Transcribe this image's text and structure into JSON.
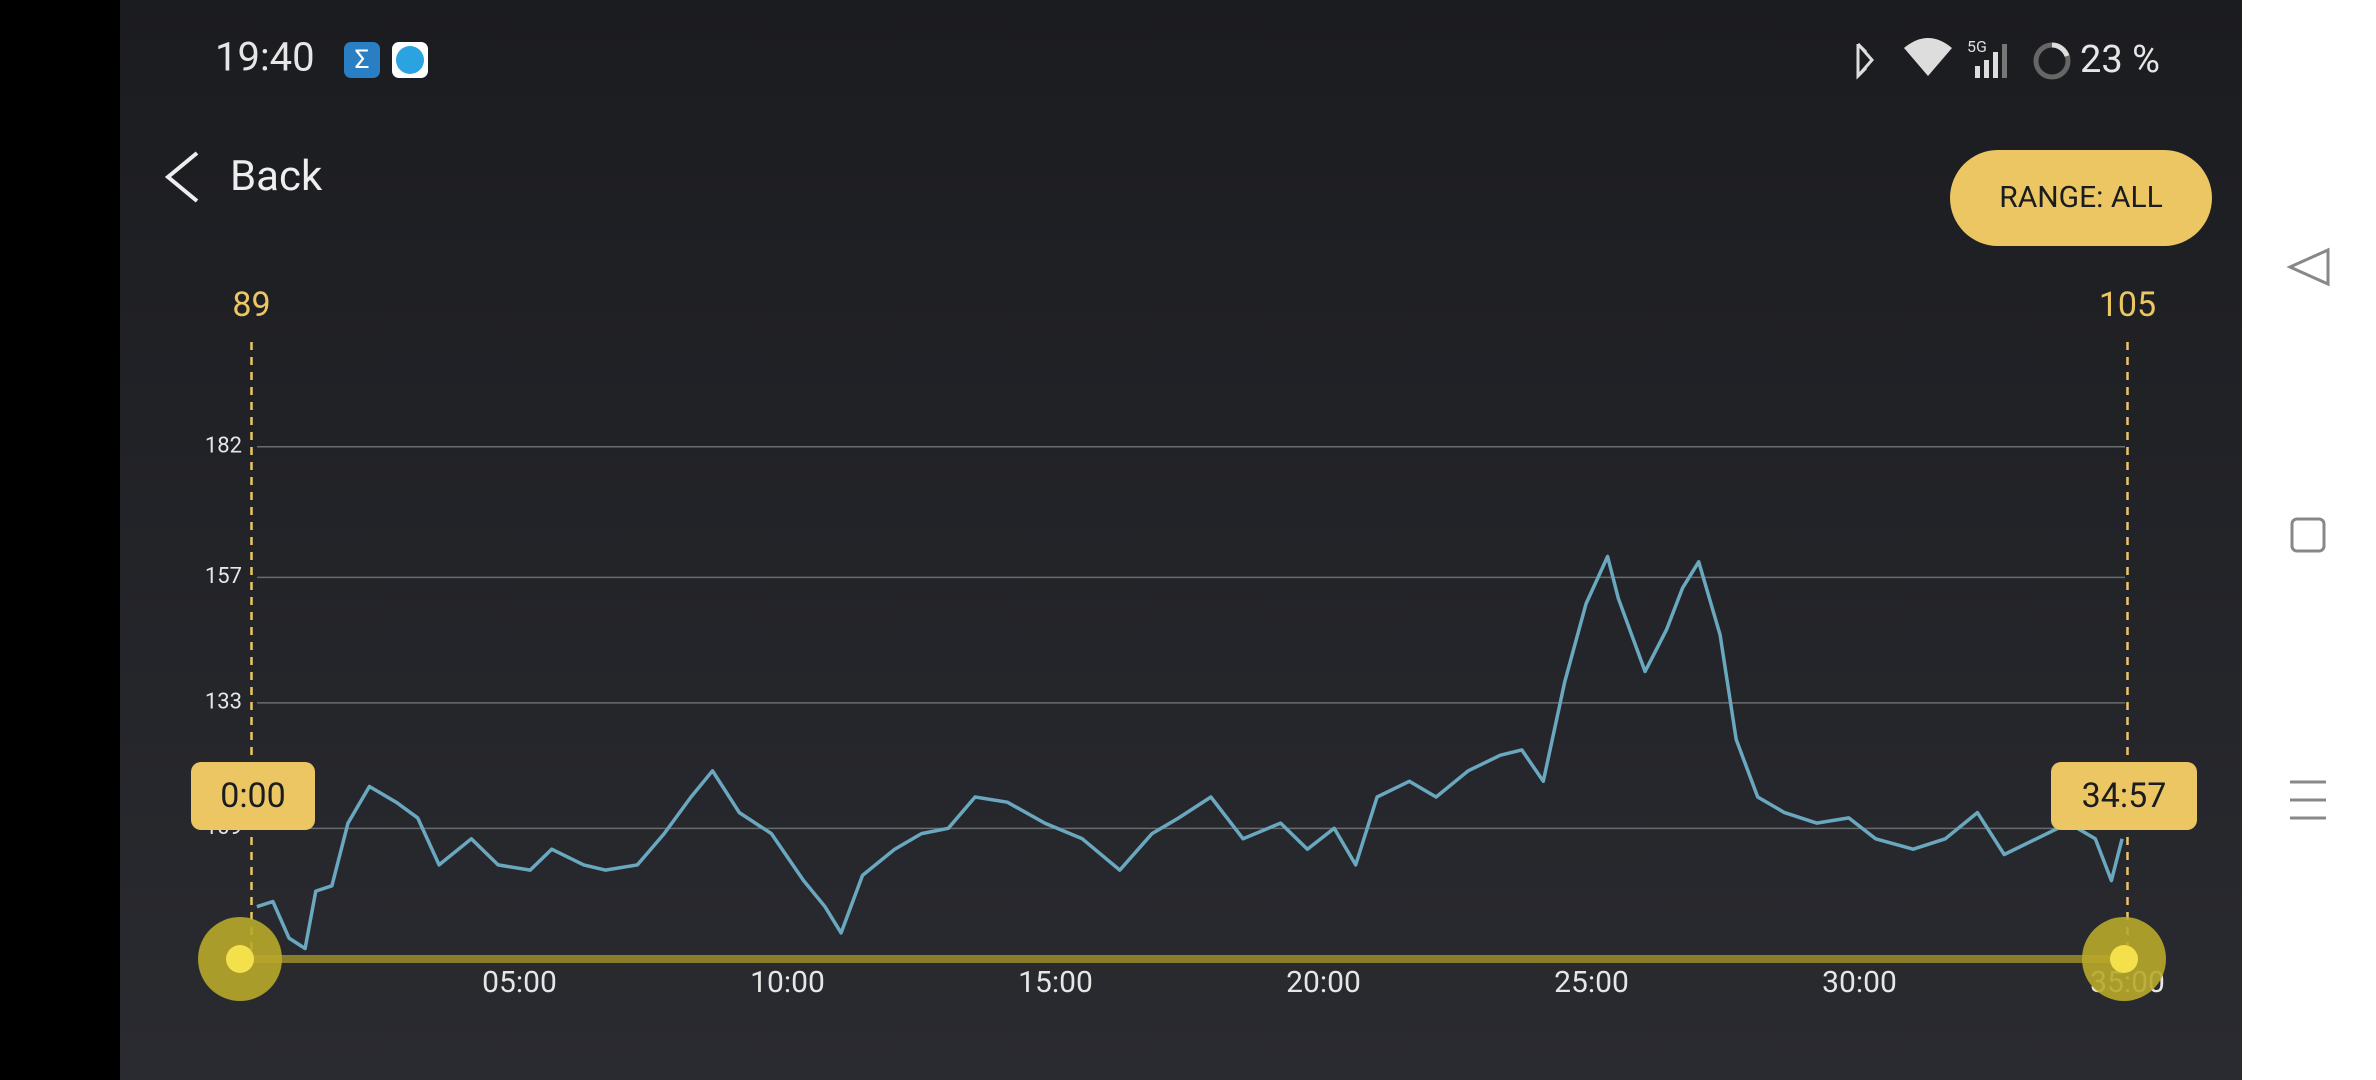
{
  "status_bar": {
    "time": "19:40",
    "network": "5G",
    "battery": "23 %"
  },
  "header": {
    "back": "Back",
    "range_button": "RANGE: ALL"
  },
  "range_selector": {
    "start_value": "89",
    "end_value": "105",
    "start_time": "0:00",
    "end_time": "34:57"
  },
  "chart_data": {
    "type": "line",
    "x": [
      0.1,
      0.4,
      0.7,
      1.0,
      1.2,
      1.5,
      1.8,
      2.2,
      2.7,
      3.1,
      3.5,
      4.1,
      4.6,
      5.2,
      5.6,
      6.2,
      6.6,
      7.2,
      7.7,
      8.2,
      8.6,
      9.1,
      9.7,
      10.3,
      10.7,
      11.0,
      11.4,
      12.0,
      12.5,
      13.0,
      13.5,
      14.1,
      14.8,
      15.5,
      16.2,
      16.8,
      17.3,
      17.9,
      18.5,
      19.2,
      19.7,
      20.2,
      20.6,
      21.0,
      21.6,
      22.1,
      22.7,
      23.3,
      23.7,
      24.1,
      24.5,
      24.9,
      25.3,
      25.5,
      26.0,
      26.4,
      26.7,
      27.0,
      27.4,
      27.7,
      28.1,
      28.6,
      29.2,
      29.8,
      30.3,
      31.0,
      31.6,
      32.2,
      32.7,
      33.3,
      33.9,
      34.4,
      34.7,
      34.9
    ],
    "series": [
      {
        "color": "#6aa8c0",
        "values": [
          94,
          95,
          88,
          86,
          97,
          98,
          110,
          117,
          114,
          111,
          102,
          107,
          102,
          101,
          105,
          102,
          101,
          102,
          108,
          115,
          120,
          112,
          108,
          99,
          94,
          89,
          100,
          105,
          108,
          109,
          115,
          114,
          110,
          107,
          101,
          108,
          111,
          115,
          107,
          110,
          105,
          109,
          102,
          115,
          118,
          115,
          120,
          123,
          124,
          118,
          137,
          152,
          161,
          153,
          139,
          147,
          155,
          160,
          146,
          126,
          115,
          112,
          110,
          111,
          107,
          105,
          107,
          112,
          104,
          107,
          110,
          107,
          99,
          107
        ]
      }
    ],
    "xlim": [
      0,
      35
    ],
    "ylim": [
      84,
      203
    ],
    "xticks": [
      {
        "value": 5,
        "label": "05:00"
      },
      {
        "value": 10,
        "label": "10:00"
      },
      {
        "value": 15,
        "label": "15:00"
      },
      {
        "value": 20,
        "label": "20:00"
      },
      {
        "value": 25,
        "label": "25:00"
      },
      {
        "value": 30,
        "label": "30:00"
      },
      {
        "value": 35,
        "label": "35:00"
      }
    ],
    "yticks": [
      109,
      133,
      157,
      182
    ],
    "grid": true
  }
}
